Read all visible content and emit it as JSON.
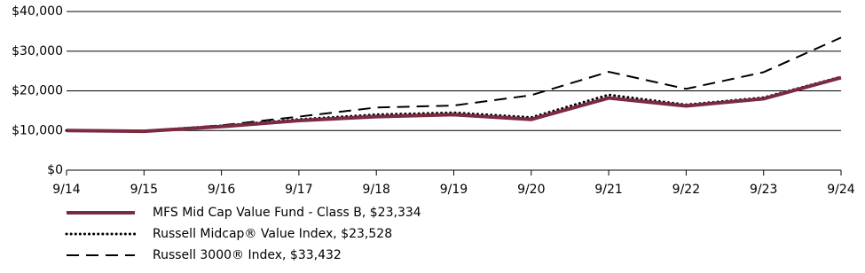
{
  "chart_data": {
    "type": "line",
    "categories": [
      "9/14",
      "9/15",
      "9/16",
      "9/17",
      "9/18",
      "9/19",
      "9/20",
      "9/21",
      "9/22",
      "9/23",
      "9/24"
    ],
    "series": [
      {
        "name": "MFS Mid Cap Value Fund - Class B, $23,334",
        "color": "#7b2a40",
        "style": "solid",
        "values": [
          10000,
          9800,
          11000,
          12500,
          13500,
          14000,
          12800,
          18200,
          16200,
          18000,
          23334
        ]
      },
      {
        "name": "Russell Midcap® Value Index, $23,528",
        "color": "#000000",
        "style": "dotted",
        "values": [
          10000,
          9900,
          11200,
          12800,
          14000,
          14500,
          13300,
          19000,
          16500,
          18300,
          23528
        ]
      },
      {
        "name": "Russell 3000® Index, $33,432",
        "color": "#000000",
        "style": "dashed",
        "values": [
          10000,
          9900,
          11300,
          13500,
          15800,
          16300,
          18900,
          24800,
          20500,
          24700,
          33432
        ]
      }
    ],
    "ylim": [
      0,
      40000
    ],
    "yticks": [
      {
        "value": 0,
        "label": "$0"
      },
      {
        "value": 10000,
        "label": "$10,000"
      },
      {
        "value": 20000,
        "label": "$20,000"
      },
      {
        "value": 30000,
        "label": "$30,000"
      },
      {
        "value": 40000,
        "label": "$40,000"
      }
    ],
    "grid": true
  }
}
